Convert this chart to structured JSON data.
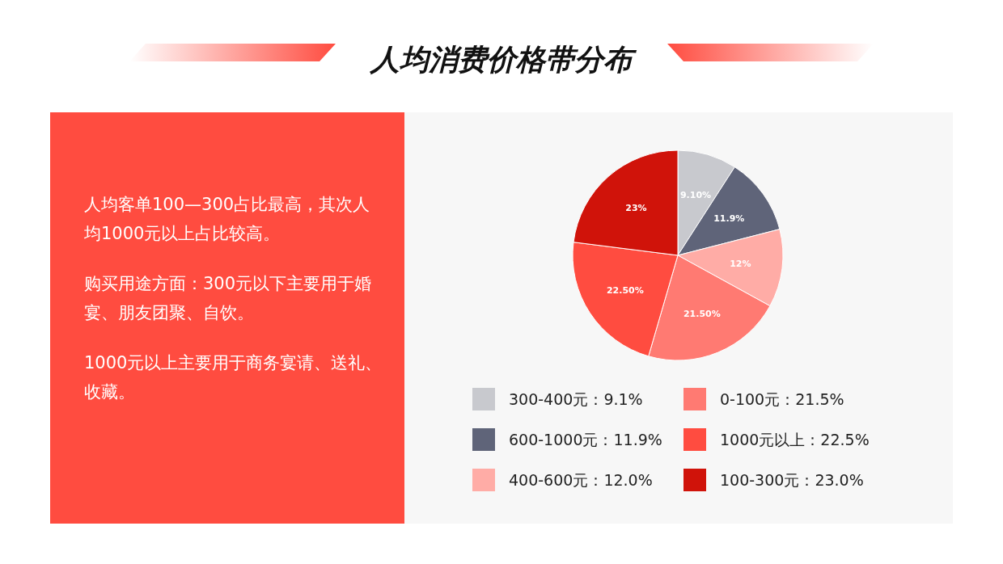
{
  "chart_data": {
    "type": "pie",
    "title": "人均消费价格带分布",
    "categories": [
      "300-400元：9.1%",
      "600-1000元：11.9%",
      "400-600元：12.0%",
      "0-100元：21.5%",
      "1000元以上：22.5%",
      "100-300元：23.0%"
    ],
    "values": [
      9.1,
      11.9,
      12,
      21.5,
      22.5,
      23
    ],
    "value_labels": [
      "9.10%",
      "11.9%",
      "12%",
      "21.50%",
      "22.50%",
      "23%"
    ],
    "colors": [
      "#c8c9ce",
      "#5f6479",
      "#ffaca6",
      "#ff7a72",
      "#ff4c40",
      "#d0130a"
    ],
    "legend": "bottom",
    "annotations": [
      "人均客单100—300占比最高，其次人均1000元以上占比较高。",
      "购买用途方面：300元以下主要用于婚宴、朋友团聚、自饮。",
      "1000元以上主要用于商务宴请、送礼、收藏。"
    ]
  }
}
